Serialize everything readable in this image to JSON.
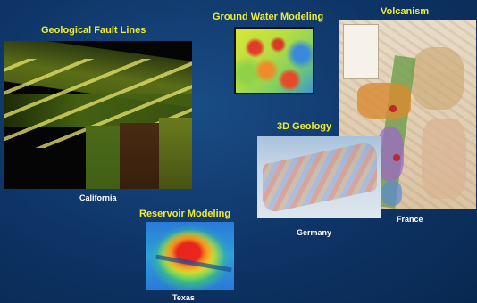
{
  "panels": {
    "fault": {
      "title": "Geological Fault Lines",
      "caption": "California"
    },
    "water": {
      "title": "Ground Water Modeling"
    },
    "volcano": {
      "title": "Volcanism",
      "caption": "France"
    },
    "geo3d": {
      "title": "3D Geology",
      "caption": "Germany"
    },
    "reservoir": {
      "title": "Reservoir Modeling",
      "caption": "Texas"
    }
  },
  "colors": {
    "background": "#0e3466",
    "title": "#f2ec2e",
    "caption": "#ffffff"
  }
}
